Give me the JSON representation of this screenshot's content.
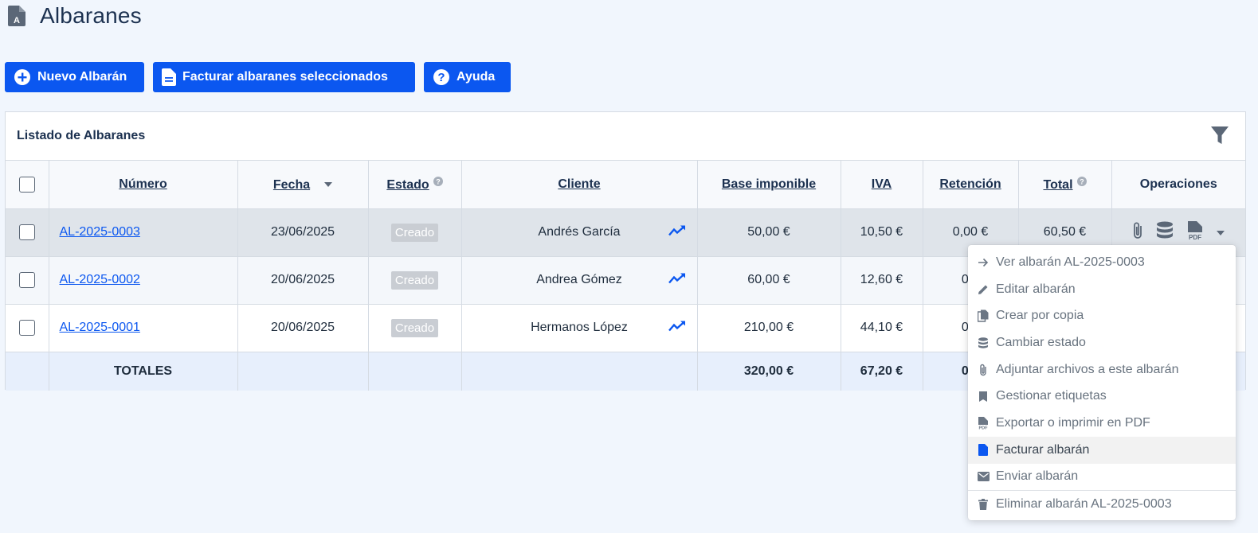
{
  "page": {
    "title": "Albaranes"
  },
  "toolbar": {
    "new_label": "Nuevo Albarán",
    "invoice_selected_label": "Facturar albaranes seleccionados",
    "help_label": "Ayuda"
  },
  "card": {
    "title": "Listado de Albaranes"
  },
  "table": {
    "headers": {
      "numero": "Número",
      "fecha": "Fecha",
      "estado": "Estado",
      "cliente": "Cliente",
      "base": "Base imponible",
      "iva": "IVA",
      "retencion": "Retención",
      "total": "Total",
      "operaciones": "Operaciones"
    },
    "rows": [
      {
        "numero": "AL-2025-0003",
        "fecha": "23/06/2025",
        "estado": "Creado",
        "cliente": "Andrés García",
        "base": "50,00 €",
        "iva": "10,50 €",
        "retencion": "0,00 €",
        "total": "60,50 €"
      },
      {
        "numero": "AL-2025-0002",
        "fecha": "20/06/2025",
        "estado": "Creado",
        "cliente": "Andrea Gómez",
        "base": "60,00 €",
        "iva": "12,60 €",
        "retencion": "0,0"
      },
      {
        "numero": "AL-2025-0001",
        "fecha": "20/06/2025",
        "estado": "Creado",
        "cliente": "Hermanos López",
        "base": "210,00 €",
        "iva": "44,10 €",
        "retencion": "0,0"
      }
    ],
    "totals": {
      "label": "TOTALES",
      "base": "320,00 €",
      "iva": "67,20 €",
      "retencion": "0,0"
    }
  },
  "menu": {
    "items": [
      {
        "label": "Ver albarán AL-2025-0003",
        "icon": "arrow-right-icon"
      },
      {
        "label": "Editar albarán",
        "icon": "pencil-icon"
      },
      {
        "label": "Crear por copia",
        "icon": "copy-icon"
      },
      {
        "label": "Cambiar estado",
        "icon": "database-icon"
      },
      {
        "label": "Adjuntar archivos a este albarán",
        "icon": "paperclip-icon"
      },
      {
        "label": "Gestionar etiquetas",
        "icon": "bookmark-icon"
      },
      {
        "label": "Exportar o imprimir en PDF",
        "icon": "pdf-icon"
      },
      {
        "label": "Facturar albarán",
        "icon": "file-icon"
      },
      {
        "label": "Enviar albarán",
        "icon": "envelope-icon"
      },
      {
        "label": "Eliminar albarán AL-2025-0003",
        "icon": "trash-icon"
      }
    ]
  },
  "colors": {
    "primary": "#0b57f0",
    "badge": "#c9cdd3",
    "title": "#1c3150"
  }
}
